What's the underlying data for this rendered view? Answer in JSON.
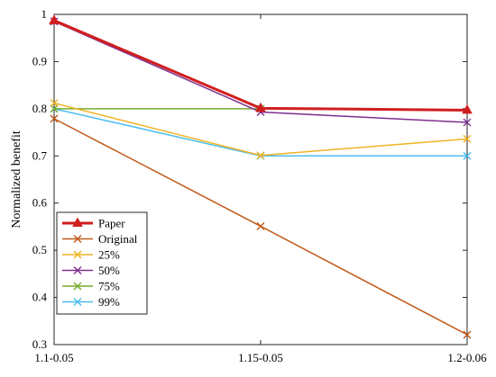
{
  "chart_data": {
    "type": "line",
    "title": "",
    "xlabel": "",
    "ylabel": "Normalized benefit",
    "categories": [
      "1.1-0.05",
      "1.15-0.05",
      "1.2-0.06"
    ],
    "ylim": [
      0.3,
      1.0
    ],
    "yticks": [
      "0.3",
      "0.4",
      "0.5",
      "0.6",
      "0.7",
      "0.8",
      "0.9",
      "1"
    ],
    "grid": false,
    "legend_position": "bottom-left",
    "series": [
      {
        "name": "Paper",
        "values": [
          0.987,
          0.801,
          0.797
        ],
        "color": "#d11e1e",
        "marker": "triangle"
      },
      {
        "name": "Original",
        "values": [
          0.779,
          0.551,
          0.321
        ],
        "color": "#c05a1a",
        "marker": "x"
      },
      {
        "name": "25%",
        "values": [
          0.812,
          0.701,
          0.736
        ],
        "color": "#f0b323",
        "marker": "x"
      },
      {
        "name": "50%",
        "values": [
          0.985,
          0.793,
          0.771
        ],
        "color": "#7e2f8e",
        "marker": "x"
      },
      {
        "name": "75%",
        "values": [
          0.8,
          0.8,
          null
        ],
        "color": "#77ac30",
        "marker": "x"
      },
      {
        "name": "99%",
        "values": [
          0.8,
          0.7,
          0.7
        ],
        "color": "#4dbeee",
        "marker": "x"
      }
    ]
  }
}
